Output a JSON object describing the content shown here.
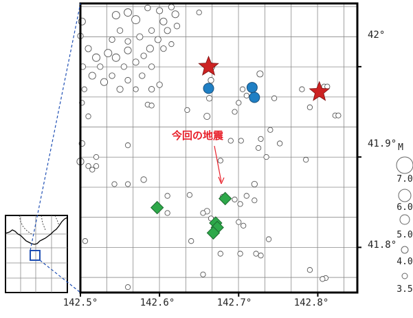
{
  "map": {
    "lon_range": [
      142.5,
      142.85
    ],
    "lat_range": [
      41.75,
      42.07
    ],
    "lon_ticks": [
      142.5,
      142.6,
      142.7,
      142.8
    ],
    "lat_ticks": [
      41.8,
      41.9,
      42.0
    ],
    "lon_tick_labels": [
      "142.5°",
      "142.6°",
      "142.7°",
      "142.8°"
    ],
    "lat_tick_labels": [
      "41.8°",
      "41.9°",
      "42°"
    ],
    "grid_step": 0.0333,
    "grid": true,
    "annotation": {
      "text": "今回の地震",
      "color": "#e8202a"
    },
    "colors": {
      "star": "#cc2222",
      "blue": "#1f7fc4",
      "green": "#2ea84a",
      "circle": "#ffffff"
    }
  },
  "legend": {
    "title": "M",
    "items": [
      {
        "label": "7.0",
        "mag": 7.0
      },
      {
        "label": "6.0",
        "mag": 6.0
      },
      {
        "label": "5.0",
        "mag": 5.0
      },
      {
        "label": "4.0",
        "mag": 4.0
      },
      {
        "label": "3.5",
        "mag": 3.5
      }
    ]
  },
  "inset": {
    "box_color": "#1f4fb4"
  },
  "events": {
    "stars": [
      {
        "lon": 142.662,
        "lat": 42.0
      },
      {
        "lon": 142.802,
        "lat": 41.972
      }
    ],
    "blue": [
      {
        "lon": 142.662,
        "lat": 41.976
      },
      {
        "lon": 142.717,
        "lat": 41.977
      },
      {
        "lon": 142.72,
        "lat": 41.966
      }
    ],
    "green": [
      {
        "lon": 142.683,
        "lat": 41.854
      },
      {
        "lon": 142.597,
        "lat": 41.844
      },
      {
        "lon": 142.671,
        "lat": 41.827
      },
      {
        "lon": 142.673,
        "lat": 41.822
      },
      {
        "lon": 142.668,
        "lat": 41.816
      }
    ],
    "circles": [
      {
        "lon": 142.502,
        "lat": 42.05,
        "m": 4.4
      },
      {
        "lon": 142.5,
        "lat": 42.034,
        "m": 4.0
      },
      {
        "lon": 142.51,
        "lat": 42.02,
        "m": 4.2
      },
      {
        "lon": 142.52,
        "lat": 42.01,
        "m": 4.6
      },
      {
        "lon": 142.503,
        "lat": 42.0,
        "m": 4.0
      },
      {
        "lon": 142.515,
        "lat": 41.99,
        "m": 4.4
      },
      {
        "lon": 142.505,
        "lat": 41.975,
        "m": 3.8
      },
      {
        "lon": 142.502,
        "lat": 41.96,
        "m": 3.8
      },
      {
        "lon": 142.53,
        "lat": 41.983,
        "m": 4.4
      },
      {
        "lon": 142.525,
        "lat": 42.0,
        "m": 4.0
      },
      {
        "lon": 142.54,
        "lat": 42.03,
        "m": 4.0
      },
      {
        "lon": 142.545,
        "lat": 42.057,
        "m": 4.6
      },
      {
        "lon": 142.56,
        "lat": 42.06,
        "m": 4.6
      },
      {
        "lon": 142.57,
        "lat": 42.052,
        "m": 4.8
      },
      {
        "lon": 142.585,
        "lat": 42.065,
        "m": 4.0
      },
      {
        "lon": 142.6,
        "lat": 42.062,
        "m": 4.2
      },
      {
        "lon": 142.615,
        "lat": 42.066,
        "m": 4.0
      },
      {
        "lon": 142.605,
        "lat": 42.05,
        "m": 4.4
      },
      {
        "lon": 142.62,
        "lat": 42.058,
        "m": 4.4
      },
      {
        "lon": 142.622,
        "lat": 42.045,
        "m": 4.0
      },
      {
        "lon": 142.61,
        "lat": 42.04,
        "m": 4.2
      },
      {
        "lon": 142.59,
        "lat": 42.04,
        "m": 4.0
      },
      {
        "lon": 142.575,
        "lat": 42.033,
        "m": 4.2
      },
      {
        "lon": 142.56,
        "lat": 42.028,
        "m": 4.0
      },
      {
        "lon": 142.55,
        "lat": 42.04,
        "m": 4.0
      },
      {
        "lon": 142.545,
        "lat": 42.01,
        "m": 4.6
      },
      {
        "lon": 142.555,
        "lat": 42.0,
        "m": 4.0
      },
      {
        "lon": 142.535,
        "lat": 42.015,
        "m": 4.6
      },
      {
        "lon": 142.56,
        "lat": 42.018,
        "m": 4.4
      },
      {
        "lon": 142.57,
        "lat": 42.005,
        "m": 4.2
      },
      {
        "lon": 142.58,
        "lat": 42.012,
        "m": 4.0
      },
      {
        "lon": 142.59,
        "lat": 42.0,
        "m": 4.0
      },
      {
        "lon": 142.578,
        "lat": 41.99,
        "m": 4.0
      },
      {
        "lon": 142.56,
        "lat": 41.985,
        "m": 4.0
      },
      {
        "lon": 142.54,
        "lat": 41.99,
        "m": 4.0
      },
      {
        "lon": 142.55,
        "lat": 41.975,
        "m": 4.2
      },
      {
        "lon": 142.57,
        "lat": 41.975,
        "m": 3.8
      },
      {
        "lon": 142.6,
        "lat": 41.98,
        "m": 4.0
      },
      {
        "lon": 142.59,
        "lat": 41.975,
        "m": 4.0
      },
      {
        "lon": 142.605,
        "lat": 42.02,
        "m": 4.0
      },
      {
        "lon": 142.615,
        "lat": 42.025,
        "m": 3.8
      },
      {
        "lon": 142.598,
        "lat": 42.03,
        "m": 4.2
      },
      {
        "lon": 142.588,
        "lat": 42.02,
        "m": 4.4
      },
      {
        "lon": 142.65,
        "lat": 42.06,
        "m": 3.8
      },
      {
        "lon": 142.665,
        "lat": 42.0,
        "m": 4.6
      },
      {
        "lon": 142.665,
        "lat": 41.985,
        "m": 4.0
      },
      {
        "lon": 142.663,
        "lat": 41.965,
        "m": 4.0
      },
      {
        "lon": 142.705,
        "lat": 41.975,
        "m": 3.8
      },
      {
        "lon": 142.71,
        "lat": 41.968,
        "m": 3.8
      },
      {
        "lon": 142.727,
        "lat": 41.992,
        "m": 4.2
      },
      {
        "lon": 142.745,
        "lat": 41.965,
        "m": 3.8
      },
      {
        "lon": 142.7,
        "lat": 41.96,
        "m": 3.8
      },
      {
        "lon": 142.695,
        "lat": 41.95,
        "m": 3.8
      },
      {
        "lon": 142.66,
        "lat": 41.945,
        "m": 4.2
      },
      {
        "lon": 142.635,
        "lat": 41.952,
        "m": 3.8
      },
      {
        "lon": 142.585,
        "lat": 41.958,
        "m": 3.8
      },
      {
        "lon": 142.59,
        "lat": 41.957,
        "m": 3.8
      },
      {
        "lon": 142.51,
        "lat": 41.945,
        "m": 3.8
      },
      {
        "lon": 142.78,
        "lat": 41.975,
        "m": 3.8
      },
      {
        "lon": 142.808,
        "lat": 41.978,
        "m": 3.8
      },
      {
        "lon": 142.812,
        "lat": 41.978,
        "m": 3.8
      },
      {
        "lon": 142.79,
        "lat": 41.955,
        "m": 3.8
      },
      {
        "lon": 142.822,
        "lat": 41.946,
        "m": 3.8
      },
      {
        "lon": 142.826,
        "lat": 41.946,
        "m": 3.8
      },
      {
        "lon": 142.74,
        "lat": 41.93,
        "m": 3.8
      },
      {
        "lon": 142.728,
        "lat": 41.92,
        "m": 3.8
      },
      {
        "lon": 142.752,
        "lat": 41.915,
        "m": 3.8
      },
      {
        "lon": 142.725,
        "lat": 41.91,
        "m": 3.8
      },
      {
        "lon": 142.69,
        "lat": 41.918,
        "m": 3.8
      },
      {
        "lon": 142.703,
        "lat": 41.918,
        "m": 3.8
      },
      {
        "lon": 142.677,
        "lat": 41.896,
        "m": 3.8
      },
      {
        "lon": 142.735,
        "lat": 41.9,
        "m": 3.8
      },
      {
        "lon": 142.785,
        "lat": 41.897,
        "m": 3.8
      },
      {
        "lon": 142.56,
        "lat": 41.913,
        "m": 3.8
      },
      {
        "lon": 142.502,
        "lat": 41.915,
        "m": 4.0
      },
      {
        "lon": 142.52,
        "lat": 41.9,
        "m": 3.8
      },
      {
        "lon": 142.5,
        "lat": 41.895,
        "m": 4.4
      },
      {
        "lon": 142.52,
        "lat": 41.89,
        "m": 3.8
      },
      {
        "lon": 142.515,
        "lat": 41.886,
        "m": 3.8
      },
      {
        "lon": 142.51,
        "lat": 41.89,
        "m": 3.8
      },
      {
        "lon": 142.56,
        "lat": 41.87,
        "m": 3.8
      },
      {
        "lon": 142.58,
        "lat": 41.875,
        "m": 4.0
      },
      {
        "lon": 142.543,
        "lat": 41.87,
        "m": 3.8
      },
      {
        "lon": 142.61,
        "lat": 41.857,
        "m": 3.8
      },
      {
        "lon": 142.638,
        "lat": 41.858,
        "m": 3.8
      },
      {
        "lon": 142.68,
        "lat": 41.856,
        "m": 3.8
      },
      {
        "lon": 142.695,
        "lat": 41.853,
        "m": 3.8
      },
      {
        "lon": 142.71,
        "lat": 41.857,
        "m": 3.8
      },
      {
        "lon": 142.72,
        "lat": 41.87,
        "m": 4.0
      },
      {
        "lon": 142.72,
        "lat": 41.852,
        "m": 3.8
      },
      {
        "lon": 142.702,
        "lat": 41.848,
        "m": 3.8
      },
      {
        "lon": 142.66,
        "lat": 41.84,
        "m": 4.0
      },
      {
        "lon": 142.655,
        "lat": 41.838,
        "m": 3.8
      },
      {
        "lon": 142.665,
        "lat": 41.832,
        "m": 3.8
      },
      {
        "lon": 142.61,
        "lat": 41.838,
        "m": 3.8
      },
      {
        "lon": 142.7,
        "lat": 41.828,
        "m": 3.8
      },
      {
        "lon": 142.706,
        "lat": 41.824,
        "m": 3.8
      },
      {
        "lon": 142.64,
        "lat": 41.807,
        "m": 3.8
      },
      {
        "lon": 142.702,
        "lat": 41.793,
        "m": 3.8
      },
      {
        "lon": 142.722,
        "lat": 41.793,
        "m": 3.8
      },
      {
        "lon": 142.728,
        "lat": 41.791,
        "m": 3.8
      },
      {
        "lon": 142.738,
        "lat": 41.809,
        "m": 3.8
      },
      {
        "lon": 142.677,
        "lat": 41.793,
        "m": 3.8
      },
      {
        "lon": 142.655,
        "lat": 41.77,
        "m": 3.8
      },
      {
        "lon": 142.79,
        "lat": 41.775,
        "m": 3.8
      },
      {
        "lon": 142.81,
        "lat": 41.766,
        "m": 3.8
      },
      {
        "lon": 142.806,
        "lat": 41.765,
        "m": 3.8
      },
      {
        "lon": 142.56,
        "lat": 41.756,
        "m": 3.8
      },
      {
        "lon": 142.506,
        "lat": 41.807,
        "m": 3.8
      }
    ]
  }
}
